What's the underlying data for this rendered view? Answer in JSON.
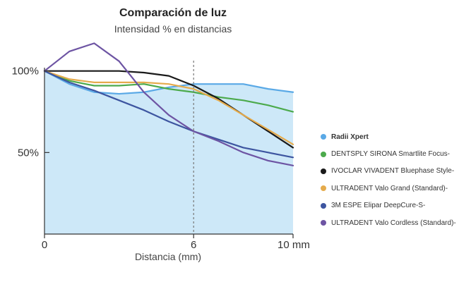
{
  "chart_data": {
    "type": "line",
    "title": "Comparación de luz",
    "subtitle": "Intensidad % en distancias",
    "xlabel": "Distancia (mm)",
    "ylabel": "",
    "xlim": [
      0,
      10
    ],
    "ylim": [
      0,
      115
    ],
    "x_ticks": [
      {
        "value": 0,
        "label": "0"
      },
      {
        "value": 6,
        "label": "6"
      },
      {
        "value": 10,
        "label": "10 mm"
      }
    ],
    "y_ticks": [
      {
        "value": 100,
        "label": "100%"
      },
      {
        "value": 50,
        "label": "50%"
      }
    ],
    "reference_line_x": 6,
    "legend_position": "right",
    "series": [
      {
        "name": "Radii Xpert",
        "color": "#5aa9e6",
        "filled": true,
        "fill_color": "#cde8f8",
        "x": [
          0,
          1,
          2,
          3,
          4,
          5,
          6,
          7,
          8,
          9,
          10
        ],
        "y": [
          100,
          92,
          87,
          86,
          87,
          90,
          92,
          92,
          92,
          89,
          87
        ]
      },
      {
        "name": "DENTSPLY SIRONA Smartlite Focus-",
        "color": "#4caa4c",
        "x": [
          0,
          1,
          2,
          3,
          4,
          5,
          6,
          7,
          8,
          9,
          10
        ],
        "y": [
          100,
          94,
          91,
          91,
          92,
          89,
          87,
          84,
          82,
          79,
          75
        ]
      },
      {
        "name": "IVOCLAR VIVADENT Bluephase Style-",
        "color": "#1a1a1a",
        "x": [
          0,
          1,
          2,
          3,
          4,
          5,
          6,
          7,
          8,
          9,
          10
        ],
        "y": [
          100,
          100,
          100,
          100,
          99,
          97,
          91,
          83,
          73,
          63,
          53
        ]
      },
      {
        "name": "ULTRADENT Valo Grand (Standard)-",
        "color": "#e5ab4c",
        "x": [
          0,
          1,
          2,
          3,
          4,
          5,
          6,
          7,
          8,
          9,
          10
        ],
        "y": [
          100,
          95,
          93,
          93,
          93,
          92,
          89,
          82,
          73,
          64,
          55
        ]
      },
      {
        "name": "3M ESPE Elipar DeepCure-S-",
        "color": "#3d55a0",
        "x": [
          0,
          1,
          2,
          3,
          4,
          5,
          6,
          7,
          8,
          9,
          10
        ],
        "y": [
          100,
          93,
          88,
          82,
          76,
          69,
          63,
          58,
          53,
          50,
          47
        ]
      },
      {
        "name": "ULTRADENT Valo Cordless (Standard)-",
        "color": "#6d54a3",
        "x": [
          0,
          1,
          2,
          3,
          4,
          5,
          6,
          7,
          8,
          9,
          10
        ],
        "y": [
          100,
          112,
          117,
          106,
          87,
          73,
          63,
          57,
          50,
          45,
          42
        ]
      }
    ]
  }
}
